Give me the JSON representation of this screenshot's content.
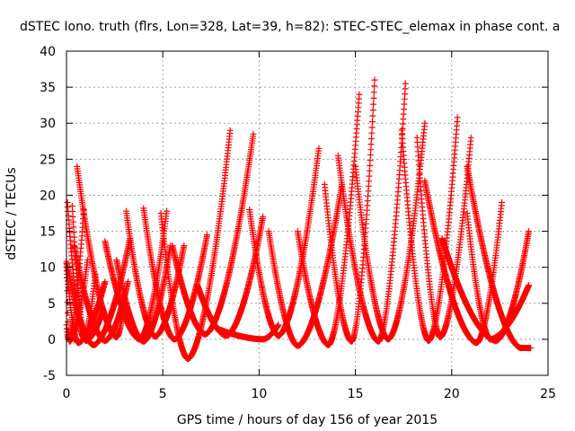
{
  "chart_data": {
    "type": "scatter",
    "title": "dSTEC Iono. truth (flrs, Lon=328, Lat=39, h=82): STEC-STEC_elemax in phase cont. a",
    "xlabel": "GPS time / hours of day 156 of year 2015",
    "ylabel": "dSTEC  / TECUs",
    "xlim": [
      0,
      25
    ],
    "ylim": [
      -5,
      40
    ],
    "xticks": [
      "0",
      "5",
      "10",
      "15",
      "20",
      "25"
    ],
    "yticks": [
      "-5",
      "0",
      "5",
      "10",
      "15",
      "20",
      "25",
      "30",
      "35",
      "40"
    ],
    "grid": true,
    "marker": "+",
    "color": "#ff0000",
    "arcs": [
      {
        "start": 0.0,
        "min_time": 0.1,
        "end": 0.9,
        "left_peak": 2.0,
        "min_value": 0.0,
        "right_peak": 18.0
      },
      {
        "start": 0.0,
        "min_time": 0.15,
        "end": 1.1,
        "left_peak": 10.5,
        "min_value": -0.3,
        "right_peak": 11.0
      },
      {
        "start": 0.05,
        "min_time": 0.9,
        "end": 1.5,
        "left_peak": 19.0,
        "min_value": 0.2,
        "right_peak": 9.0
      },
      {
        "start": 0.3,
        "min_time": 1.0,
        "end": 1.9,
        "left_peak": 18.5,
        "min_value": -0.2,
        "right_peak": 4.0
      },
      {
        "start": 0.55,
        "min_time": 2.6,
        "end": 3.0,
        "left_peak": 24.0,
        "min_value": 0.3,
        "right_peak": 5.0
      },
      {
        "start": 0.0,
        "min_time": 1.4,
        "end": 3.3,
        "left_peak": 10.8,
        "min_value": -0.8,
        "right_peak": 14.0
      },
      {
        "start": 0.0,
        "min_time": 0.6,
        "end": 2.0,
        "left_peak": 10.0,
        "min_value": -0.5,
        "right_peak": 8.0
      },
      {
        "start": 0.4,
        "min_time": 2.0,
        "end": 3.2,
        "left_peak": 13.0,
        "min_value": -0.2,
        "right_peak": 8.0
      },
      {
        "start": 2.0,
        "min_time": 3.8,
        "end": 5.2,
        "left_peak": 13.6,
        "min_value": 0.0,
        "right_peak": 17.8
      },
      {
        "start": 3.1,
        "min_time": 4.6,
        "end": 6.1,
        "left_peak": 17.8,
        "min_value": 0.4,
        "right_peak": 13.0
      },
      {
        "start": 4.0,
        "min_time": 5.6,
        "end": 7.3,
        "left_peak": 18.2,
        "min_value": 0.0,
        "right_peak": 14.5
      },
      {
        "start": 4.9,
        "min_time": 6.3,
        "end": 8.5,
        "left_peak": 17.5,
        "min_value": -2.7,
        "right_peak": 29.0
      },
      {
        "start": 5.5,
        "min_time": 7.2,
        "end": 9.7,
        "left_peak": 13.0,
        "min_value": 0.7,
        "right_peak": 28.5
      },
      {
        "start": 2.6,
        "min_time": 4.0,
        "end": 5.4,
        "left_peak": 11.0,
        "min_value": -0.3,
        "right_peak": 13.0
      },
      {
        "start": 6.8,
        "min_time": 8.3,
        "end": 10.2,
        "left_peak": 7.5,
        "min_value": 0.5,
        "right_peak": 17.0
      },
      {
        "start": 9.5,
        "min_time": 11.0,
        "end": 13.1,
        "left_peak": 18.0,
        "min_value": 0.5,
        "right_peak": 26.5
      },
      {
        "start": 10.5,
        "min_time": 12.0,
        "end": 14.3,
        "left_peak": 15.0,
        "min_value": -0.9,
        "right_peak": 21.5
      },
      {
        "start": 12.0,
        "min_time": 13.6,
        "end": 15.2,
        "left_peak": 15.0,
        "min_value": -0.8,
        "right_peak": 34.0
      },
      {
        "start": 13.4,
        "min_time": 14.8,
        "end": 16.0,
        "left_peak": 21.5,
        "min_value": -0.3,
        "right_peak": 36.0
      },
      {
        "start": 14.1,
        "min_time": 16.2,
        "end": 17.6,
        "left_peak": 25.5,
        "min_value": -0.3,
        "right_peak": 35.5
      },
      {
        "start": 15.0,
        "min_time": 16.7,
        "end": 18.6,
        "left_peak": 24.0,
        "min_value": 0.0,
        "right_peak": 30.0
      },
      {
        "start": 17.4,
        "min_time": 18.8,
        "end": 20.3,
        "left_peak": 29.0,
        "min_value": -0.2,
        "right_peak": 30.8
      },
      {
        "start": 18.2,
        "min_time": 19.4,
        "end": 21.0,
        "left_peak": 28.0,
        "min_value": 0.3,
        "right_peak": 28.0
      },
      {
        "start": 18.6,
        "min_time": 21.3,
        "end": 22.6,
        "left_peak": 22.0,
        "min_value": -0.5,
        "right_peak": 19.0
      },
      {
        "start": 19.5,
        "min_time": 22.3,
        "end": 24.0,
        "left_peak": 14.0,
        "min_value": -0.2,
        "right_peak": 15.0
      },
      {
        "start": 20.8,
        "min_time": 23.6,
        "end": 24.1,
        "left_peak": 24.0,
        "min_value": -1.2,
        "right_peak": -1.2
      },
      {
        "start": 20.8,
        "min_time": 22.0,
        "end": 24.0,
        "left_peak": 17.5,
        "min_value": 0.0,
        "right_peak": 7.5
      },
      {
        "start": 7.8,
        "min_time": 10.2,
        "end": 11.0,
        "left_peak": 1.5,
        "min_value": 0.0,
        "right_peak": 2.0
      }
    ]
  }
}
